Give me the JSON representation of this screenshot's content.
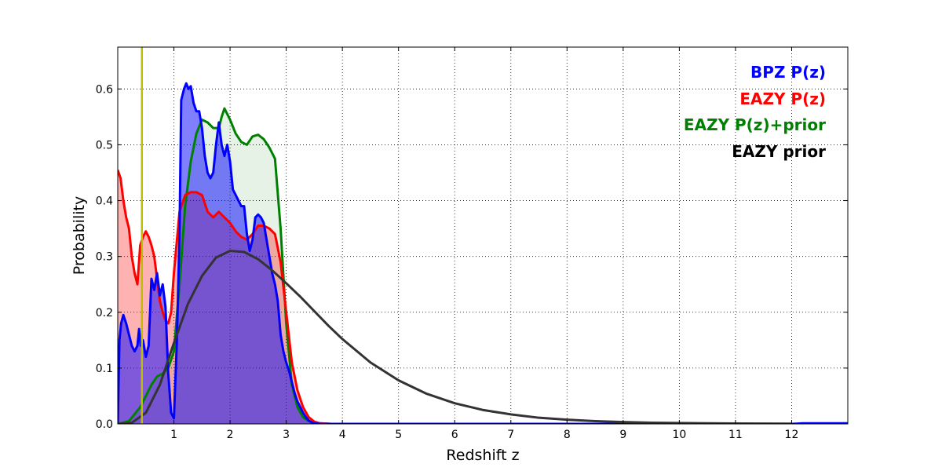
{
  "chart_data": {
    "type": "area",
    "title": "",
    "xlabel": "Redshift z",
    "ylabel": "Probability",
    "xlim": [
      0,
      13
    ],
    "ylim": [
      0,
      0.675
    ],
    "xticks": [
      1,
      2,
      3,
      4,
      5,
      6,
      7,
      8,
      9,
      10,
      11,
      12
    ],
    "yticks": [
      0.0,
      0.1,
      0.2,
      0.3,
      0.4,
      0.5,
      0.6
    ],
    "ytick_labels": [
      "0.0",
      "0.1",
      "0.2",
      "0.3",
      "0.4",
      "0.5",
      "0.6"
    ],
    "grid": true,
    "legend_position": "top-right",
    "legend": [
      "BPZ P(z)",
      "EAZY P(z)",
      "EAZY P(z)+prior",
      "EAZY prior"
    ],
    "reference_line": {
      "x": 0.43,
      "color": "#bfbf00"
    },
    "series": [
      {
        "name": "EAZY P(z)+prior",
        "color": "#008000",
        "fill": "#008000",
        "fill_opacity": 0.1,
        "x": [
          0,
          0.2,
          0.4,
          0.6,
          0.7,
          0.8,
          0.9,
          1.0,
          1.1,
          1.2,
          1.3,
          1.4,
          1.5,
          1.6,
          1.7,
          1.8,
          1.85,
          1.9,
          2.0,
          2.1,
          2.2,
          2.3,
          2.4,
          2.5,
          2.6,
          2.7,
          2.8,
          2.9,
          3.0,
          3.1,
          3.2,
          3.3,
          3.4,
          3.5,
          3.6,
          3.8,
          4.0,
          6.0,
          12.0
        ],
        "y": [
          0,
          0.005,
          0.03,
          0.07,
          0.085,
          0.09,
          0.1,
          0.13,
          0.25,
          0.39,
          0.47,
          0.52,
          0.545,
          0.54,
          0.53,
          0.53,
          0.55,
          0.565,
          0.545,
          0.52,
          0.505,
          0.5,
          0.515,
          0.518,
          0.51,
          0.495,
          0.475,
          0.35,
          0.18,
          0.07,
          0.03,
          0.012,
          0.005,
          0.002,
          0.001,
          0,
          0,
          0,
          0
        ]
      },
      {
        "name": "EAZY P(z)",
        "color": "#ff0000",
        "fill": "#ff0000",
        "fill_opacity": 0.3,
        "x": [
          0,
          0.05,
          0.1,
          0.15,
          0.2,
          0.25,
          0.3,
          0.35,
          0.4,
          0.45,
          0.5,
          0.55,
          0.6,
          0.65,
          0.7,
          0.75,
          0.8,
          0.85,
          0.9,
          0.95,
          1.0,
          1.1,
          1.2,
          1.3,
          1.4,
          1.5,
          1.6,
          1.7,
          1.8,
          1.9,
          2.0,
          2.1,
          2.2,
          2.3,
          2.4,
          2.5,
          2.6,
          2.7,
          2.8,
          2.9,
          3.0,
          3.1,
          3.2,
          3.3,
          3.4,
          3.5,
          3.6,
          3.8,
          4.0,
          6.0,
          12.0
        ],
        "y": [
          0.455,
          0.44,
          0.4,
          0.37,
          0.35,
          0.3,
          0.27,
          0.25,
          0.32,
          0.335,
          0.345,
          0.335,
          0.32,
          0.3,
          0.26,
          0.22,
          0.2,
          0.185,
          0.18,
          0.2,
          0.27,
          0.38,
          0.41,
          0.415,
          0.415,
          0.41,
          0.38,
          0.37,
          0.38,
          0.37,
          0.36,
          0.345,
          0.335,
          0.33,
          0.34,
          0.355,
          0.355,
          0.35,
          0.34,
          0.29,
          0.2,
          0.11,
          0.06,
          0.03,
          0.012,
          0.004,
          0.001,
          0,
          0,
          0,
          0
        ]
      },
      {
        "name": "BPZ P(z)",
        "color": "#0000ff",
        "fill": "#0000ff",
        "fill_opacity": 0.5,
        "x": [
          0,
          0.03,
          0.06,
          0.1,
          0.15,
          0.2,
          0.25,
          0.3,
          0.35,
          0.38,
          0.41,
          0.45,
          0.5,
          0.55,
          0.6,
          0.65,
          0.7,
          0.75,
          0.8,
          0.85,
          0.9,
          0.95,
          1.0,
          1.05,
          1.1,
          1.13,
          1.18,
          1.22,
          1.26,
          1.3,
          1.35,
          1.4,
          1.45,
          1.5,
          1.55,
          1.6,
          1.65,
          1.7,
          1.75,
          1.8,
          1.85,
          1.9,
          1.95,
          2.0,
          2.05,
          2.1,
          2.15,
          2.2,
          2.25,
          2.3,
          2.35,
          2.4,
          2.45,
          2.5,
          2.55,
          2.6,
          2.65,
          2.7,
          2.75,
          2.8,
          2.85,
          2.9,
          2.95,
          3.0,
          3.05,
          3.1,
          3.15,
          3.2,
          3.25,
          3.3,
          3.35,
          3.4,
          3.45,
          3.5,
          3.6,
          4.0,
          12.0,
          12.2,
          13.0
        ],
        "y": [
          0,
          0.15,
          0.18,
          0.195,
          0.18,
          0.16,
          0.14,
          0.13,
          0.14,
          0.17,
          0.14,
          0.15,
          0.12,
          0.14,
          0.26,
          0.24,
          0.27,
          0.23,
          0.25,
          0.21,
          0.09,
          0.02,
          0.01,
          0.14,
          0.34,
          0.58,
          0.6,
          0.61,
          0.6,
          0.605,
          0.575,
          0.56,
          0.56,
          0.53,
          0.48,
          0.45,
          0.44,
          0.45,
          0.5,
          0.54,
          0.5,
          0.48,
          0.5,
          0.47,
          0.42,
          0.41,
          0.4,
          0.39,
          0.39,
          0.34,
          0.31,
          0.33,
          0.37,
          0.375,
          0.37,
          0.36,
          0.33,
          0.3,
          0.27,
          0.25,
          0.22,
          0.16,
          0.13,
          0.11,
          0.095,
          0.075,
          0.055,
          0.04,
          0.03,
          0.02,
          0.012,
          0.006,
          0.003,
          0.001,
          0,
          0,
          0,
          0.001,
          0.001
        ]
      },
      {
        "name": "EAZY prior",
        "color": "#333333",
        "fill": "none",
        "fill_opacity": 0,
        "x": [
          0,
          0.25,
          0.5,
          0.75,
          1.0,
          1.25,
          1.5,
          1.75,
          2.0,
          2.25,
          2.5,
          2.75,
          3.0,
          3.25,
          3.5,
          3.75,
          4.0,
          4.5,
          5.0,
          5.5,
          6.0,
          6.5,
          7.0,
          7.5,
          8.0,
          8.5,
          9.0,
          9.5,
          10.0,
          11.0,
          12.0
        ],
        "y": [
          0,
          0.002,
          0.02,
          0.07,
          0.145,
          0.215,
          0.265,
          0.298,
          0.31,
          0.308,
          0.295,
          0.275,
          0.252,
          0.228,
          0.202,
          0.176,
          0.152,
          0.11,
          0.078,
          0.054,
          0.037,
          0.025,
          0.017,
          0.011,
          0.0075,
          0.005,
          0.0033,
          0.0022,
          0.0015,
          0.0007,
          0.0003
        ]
      }
    ]
  }
}
